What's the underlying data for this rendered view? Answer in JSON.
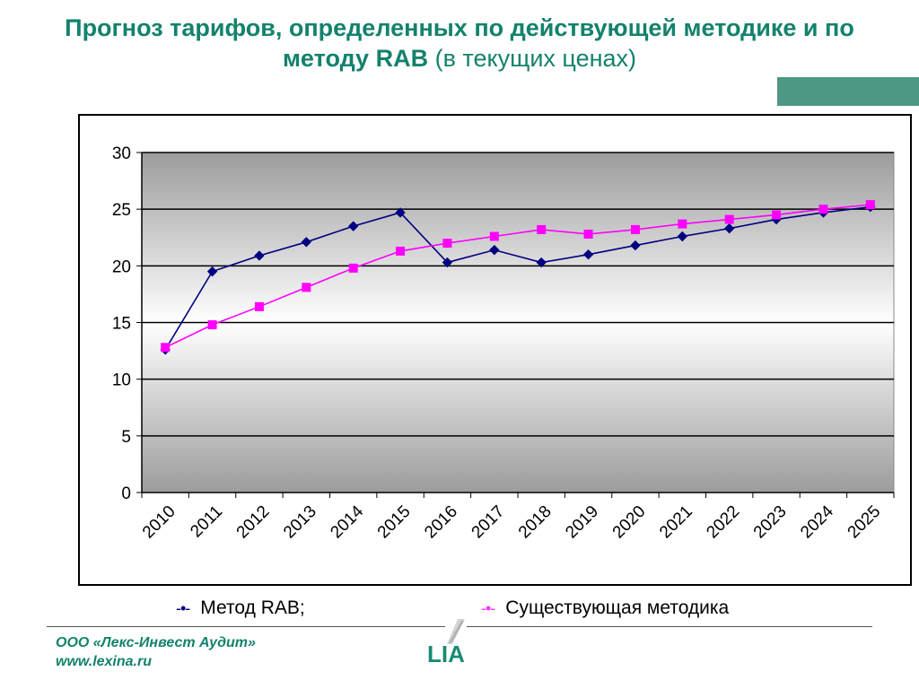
{
  "title": {
    "bold": "Прогноз тарифов, определенных по действующей методике и по методу RAB",
    "normal": "(в текущих ценах)"
  },
  "colors": {
    "title": "#13826c",
    "accent_bar": "#4c9885",
    "series_rab": "#000080",
    "series_existing": "#ff00ff"
  },
  "chart_data": {
    "type": "line",
    "x": [
      "2010",
      "2011",
      "2012",
      "2013",
      "2014",
      "2015",
      "2016",
      "2017",
      "2018",
      "2019",
      "2020",
      "2021",
      "2022",
      "2023",
      "2024",
      "2025"
    ],
    "y_ticks": [
      "0",
      "5",
      "10",
      "15",
      "20",
      "25",
      "30"
    ],
    "ylim": [
      0,
      30
    ],
    "grid": true,
    "legend_position": "bottom",
    "series": [
      {
        "name": "Метод RAB",
        "marker": "diamond",
        "color": "#000080",
        "values": [
          12.6,
          19.5,
          20.9,
          22.1,
          23.5,
          24.7,
          20.3,
          21.4,
          20.3,
          21.0,
          21.8,
          22.6,
          23.3,
          24.1,
          24.7,
          25.2
        ]
      },
      {
        "name": "Существующая методика",
        "marker": "square",
        "color": "#ff00ff",
        "values": [
          12.8,
          14.8,
          16.4,
          18.1,
          19.8,
          21.3,
          22.0,
          22.6,
          23.2,
          22.8,
          23.2,
          23.7,
          24.1,
          24.5,
          25.0,
          25.4
        ]
      }
    ]
  },
  "legend": {
    "rab_symbol": "-•-",
    "rab_label": "Метод RAB",
    "rab_suffix": ";",
    "existing_symbol": "-•-",
    "existing_label": "Существующая методика"
  },
  "footer": {
    "company": "ООО «Лекс-Инвест Аудит»",
    "website": "www.lexina.ru",
    "logo_text": "LIA"
  }
}
